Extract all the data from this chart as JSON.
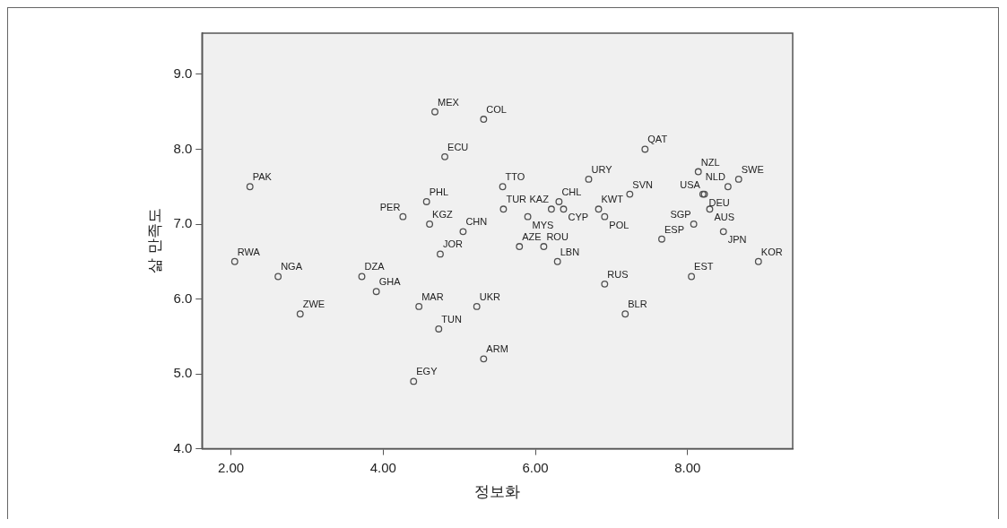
{
  "chart_data": {
    "type": "scatter",
    "xlabel": "정보화",
    "ylabel": "삶 만족도",
    "xlim": [
      1.62,
      9.38
    ],
    "ylim": [
      4,
      9.55
    ],
    "xticks": [
      {
        "value": 2,
        "label": "2.00"
      },
      {
        "value": 4,
        "label": "4.00"
      },
      {
        "value": 6,
        "label": "6.00"
      },
      {
        "value": 8,
        "label": "8.00"
      }
    ],
    "yticks": [
      {
        "value": 4,
        "label": "4.0"
      },
      {
        "value": 5,
        "label": "5.0"
      },
      {
        "value": 6,
        "label": "6.0"
      },
      {
        "value": 7,
        "label": "7.0"
      },
      {
        "value": 8,
        "label": "8.0"
      },
      {
        "value": 9,
        "label": "9.0"
      }
    ],
    "grid": false,
    "legend": false,
    "marker": "circle",
    "series": [
      {
        "color": "#505050",
        "x": [
          2.25,
          2.05,
          2.62,
          2.91,
          3.72,
          3.91,
          4.26,
          4.57,
          4.61,
          4.68,
          4.81,
          5.32,
          5.05,
          4.75,
          4.47,
          4.73,
          4.4,
          5.23,
          5.32,
          5.57,
          5.58,
          5.9,
          5.79,
          6.11,
          6.29,
          6.31,
          6.21,
          6.37,
          6.83,
          6.7,
          6.91,
          6.91,
          7.18,
          7.24,
          7.44,
          8.14,
          8.2,
          8.22,
          8.53,
          8.67,
          8.29,
          8.08,
          8.47,
          7.66,
          8.05,
          8.93
        ],
        "values": [
          7.5,
          6.5,
          6.3,
          5.8,
          6.3,
          6.1,
          7.1,
          7.3,
          7.0,
          8.5,
          7.9,
          8.4,
          6.9,
          6.6,
          5.9,
          5.6,
          4.9,
          5.9,
          5.2,
          7.5,
          7.2,
          7.1,
          6.7,
          6.7,
          6.5,
          7.3,
          7.2,
          7.2,
          7.2,
          7.6,
          7.1,
          6.2,
          5.8,
          7.4,
          8.0,
          7.7,
          7.4,
          7.4,
          7.5,
          7.6,
          7.2,
          7.0,
          6.9,
          6.8,
          6.3,
          6.5
        ],
        "value_labels": [
          "PAK",
          "RWA",
          "NGA",
          "ZWE",
          "DZA",
          "GHA",
          "PER",
          "PHL",
          "KGZ",
          "MEX",
          "ECU",
          "COL",
          "CHN",
          "JOR",
          "MAR",
          "TUN",
          "EGY",
          "UKR",
          "ARM",
          "TTO",
          "TUR",
          "MYS",
          "AZE",
          "ROU",
          "LBN",
          "CHL",
          "KAZ",
          "CYP",
          "KWT",
          "URY",
          "POL",
          "RUS",
          "BLR",
          "SVN",
          "QAT",
          "NZL",
          "USA",
          "DEU",
          "NLD",
          "SWE",
          "AUS",
          "SGP",
          "JPN",
          "ESP",
          "EST",
          "KOR"
        ]
      }
    ]
  }
}
